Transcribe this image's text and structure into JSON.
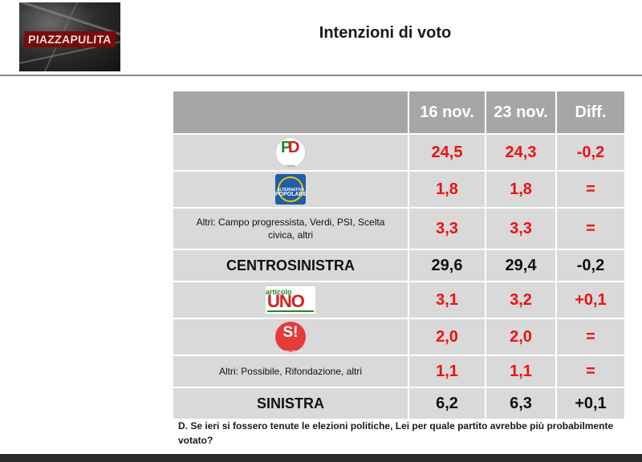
{
  "logo": {
    "text": "PIAZZAPULITA"
  },
  "title": "Intenzioni di voto",
  "table": {
    "headers": [
      "",
      "16 nov.",
      "23 nov.",
      "Diff."
    ],
    "rows": [
      {
        "label": "",
        "logo": "pd-logo",
        "logo_text": [
          "P",
          "D",
          "Partito Democratico"
        ],
        "v1": "24,5",
        "v2": "24,3",
        "diff": "-0,2"
      },
      {
        "label": "",
        "logo": "ap-logo",
        "logo_text": [
          "ALTERNATIVA",
          "POPOLARE"
        ],
        "v1": "1,8",
        "v2": "1,8",
        "diff": "="
      },
      {
        "label": "Altri: Campo progressista, Verdi, PSI, Scelta civica, altri",
        "v1": "3,3",
        "v2": "3,3",
        "diff": "="
      },
      {
        "label": "CENTROSINISTRA",
        "total": true,
        "v1": "29,6",
        "v2": "29,4",
        "diff": "-0,2"
      },
      {
        "label": "",
        "logo": "articolo-uno-logo",
        "logo_text": [
          "articolo",
          "UNO"
        ],
        "v1": "3,1",
        "v2": "3,2",
        "diff": "+0,1"
      },
      {
        "label": "",
        "logo": "sinistra-italiana-logo",
        "logo_text": [
          "S!",
          "Sinistra Italiana"
        ],
        "v1": "2,0",
        "v2": "2,0",
        "diff": "="
      },
      {
        "label": "Altri: Possibile, Rifondazione, altri",
        "v1": "1,1",
        "v2": "1,1",
        "diff": "="
      },
      {
        "label": "SINISTRA",
        "total": true,
        "v1": "6,2",
        "v2": "6,3",
        "diff": "+0,1"
      }
    ]
  },
  "footnote": "D. Se ieri si fossero tenute le elezioni politiche, Lei per quale partito avrebbe più probabilmente votato?",
  "colors": {
    "header_bg": "#a6a6a6",
    "row_bg": "#d9d9d9",
    "value_red": "#ee1111",
    "total_black": "#111111"
  }
}
